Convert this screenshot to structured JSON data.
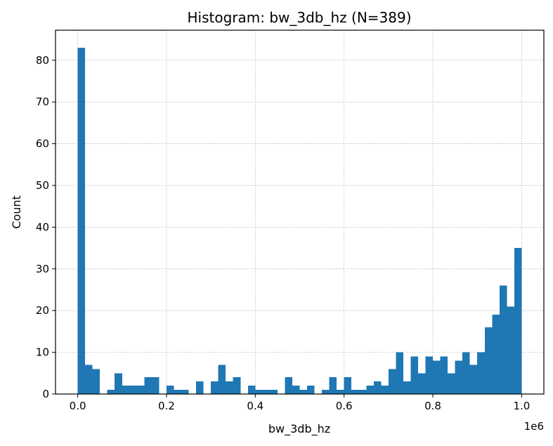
{
  "chart_data": {
    "type": "bar",
    "title": "Histogram: bw_3db_hz  (N=389)",
    "xlabel": "bw_3db_hz",
    "ylabel": "Count",
    "x_offset_label": "1e6",
    "xlim": [
      -0.05,
      1.05
    ],
    "ylim": [
      0,
      87.2
    ],
    "xticks": [
      {
        "value": 0.0,
        "label": "0.0"
      },
      {
        "value": 0.2,
        "label": "0.2"
      },
      {
        "value": 0.4,
        "label": "0.4"
      },
      {
        "value": 0.6,
        "label": "0.6"
      },
      {
        "value": 0.8,
        "label": "0.8"
      },
      {
        "value": 1.0,
        "label": "1.0"
      }
    ],
    "yticks": [
      {
        "value": 0,
        "label": "0"
      },
      {
        "value": 10,
        "label": "10"
      },
      {
        "value": 20,
        "label": "20"
      },
      {
        "value": 30,
        "label": "30"
      },
      {
        "value": 40,
        "label": "40"
      },
      {
        "value": 50,
        "label": "50"
      },
      {
        "value": 60,
        "label": "60"
      },
      {
        "value": 70,
        "label": "70"
      },
      {
        "value": 80,
        "label": "80"
      }
    ],
    "grid": true,
    "bar_color": "#1f77b4",
    "bin_start": 0.0,
    "bin_end": 1.0,
    "counts": [
      83,
      7,
      6,
      0,
      1,
      5,
      2,
      2,
      2,
      4,
      4,
      0,
      2,
      1,
      1,
      0,
      3,
      0,
      3,
      7,
      3,
      4,
      0,
      2,
      1,
      1,
      1,
      0,
      4,
      2,
      1,
      2,
      0,
      1,
      4,
      1,
      4,
      1,
      1,
      2,
      3,
      2,
      6,
      10,
      3,
      9,
      5,
      9,
      8,
      9,
      5,
      8,
      10,
      7,
      10,
      16,
      19,
      26,
      21,
      35
    ]
  }
}
